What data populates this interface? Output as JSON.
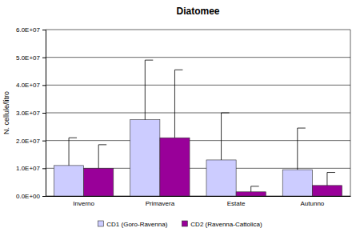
{
  "chart_data": {
    "type": "bar",
    "title": "Diatomee",
    "y_label": "N. cellule/litro",
    "categories": [
      "Inverno",
      "Primavera",
      "Estate",
      "Autunno"
    ],
    "series": [
      {
        "name": "CD1 (Goro-Ravenna)",
        "color": "#ccccff",
        "values": [
          11000000,
          27500000,
          13000000,
          9500000
        ],
        "errors": [
          10000000,
          21500000,
          17000000,
          15000000
        ]
      },
      {
        "name": "CD2 (Ravenna-Cattolica)",
        "color": "#990099",
        "values": [
          10000000,
          21000000,
          1500000,
          3800000
        ],
        "errors": [
          8500000,
          24500000,
          2000000,
          4700000
        ]
      }
    ],
    "ylim": [
      0,
      60000000
    ],
    "yticks": [
      {
        "value": 0,
        "label": "0.0E+00"
      },
      {
        "value": 10000000,
        "label": "1.0E+07"
      },
      {
        "value": 20000000,
        "label": "2.0E+07"
      },
      {
        "value": 30000000,
        "label": "3.0E+07"
      },
      {
        "value": 40000000,
        "label": "4.0E+07"
      },
      {
        "value": 50000000,
        "label": "5.0E+07"
      },
      {
        "value": 60000000,
        "label": "6.0E+07"
      }
    ],
    "grid": true,
    "legend": "bottom"
  }
}
